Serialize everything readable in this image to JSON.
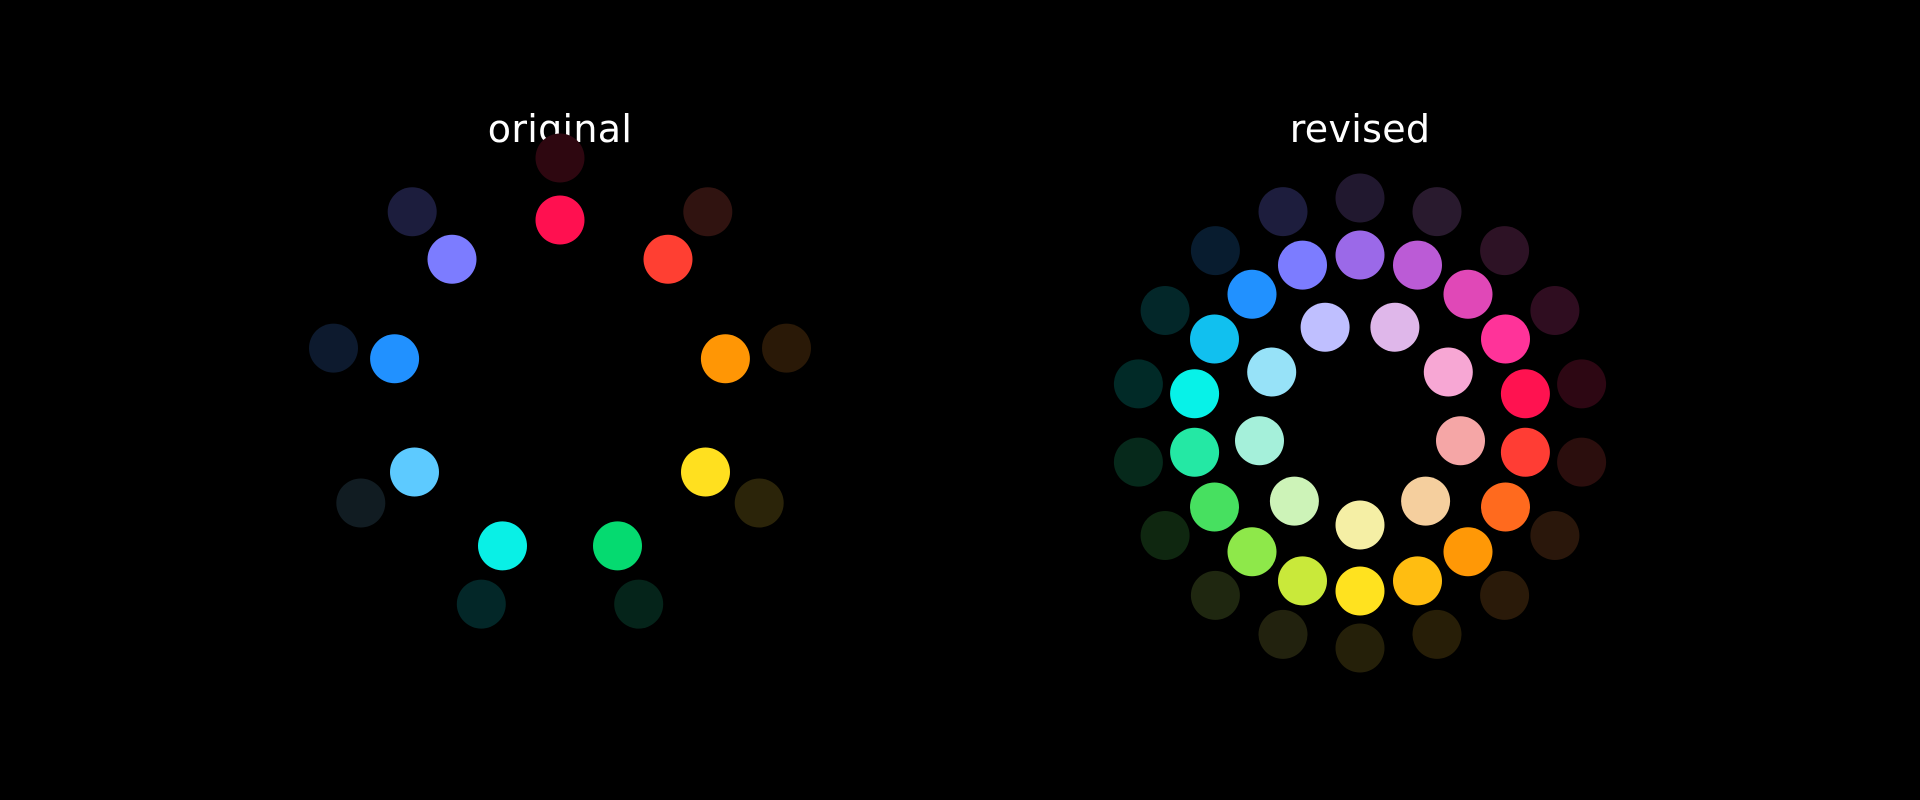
{
  "panels": [
    {
      "title": "original",
      "rings": [
        {
          "ring": "outer",
          "colors": [
            "#2e0710",
            "#301310",
            "#2a1907",
            "#2b2409",
            "#05241a",
            "#032728",
            "#111c22",
            "#0d1a2e",
            "#1c1d3d"
          ]
        },
        {
          "ring": "inner",
          "colors": [
            "#ff1050",
            "#ff3f32",
            "#ff9605",
            "#ffe01f",
            "#05da70",
            "#09f0e6",
            "#5dcaff",
            "#2191ff",
            "#7c7cff"
          ]
        }
      ]
    },
    {
      "title": "revised",
      "rings": [
        {
          "ring": "outer",
          "colors": [
            "#21182f",
            "#291a2e",
            "#2d1225",
            "#2f0d20",
            "#2d0713",
            "#2b0e0d",
            "#2a170b",
            "#2a1a09",
            "#271e07",
            "#252009",
            "#22220e",
            "#1f2710",
            "#0f2710",
            "#06291b",
            "#012a27",
            "#032729",
            "#081c2f",
            "#1d1d3d"
          ]
        },
        {
          "ring": "middle",
          "colors": [
            "#9b69e8",
            "#bb5bd6",
            "#e048b7",
            "#ff3399",
            "#ff1250",
            "#ff3d34",
            "#ff6a1e",
            "#ff9806",
            "#ffbd11",
            "#ffe21f",
            "#c9e93a",
            "#8ee84a",
            "#47e060",
            "#24e8a4",
            "#07f2e8",
            "#11c0ef",
            "#2191ff",
            "#7c7cff"
          ]
        },
        {
          "ring": "inner",
          "colors": [
            "#dfb7ea",
            "#f7a7d4",
            "#f5a6a6",
            "#f5cf9e",
            "#f5efa5",
            "#cdf3b8",
            "#a5f0da",
            "#97e2f8",
            "#bfbfff"
          ]
        }
      ]
    }
  ]
}
